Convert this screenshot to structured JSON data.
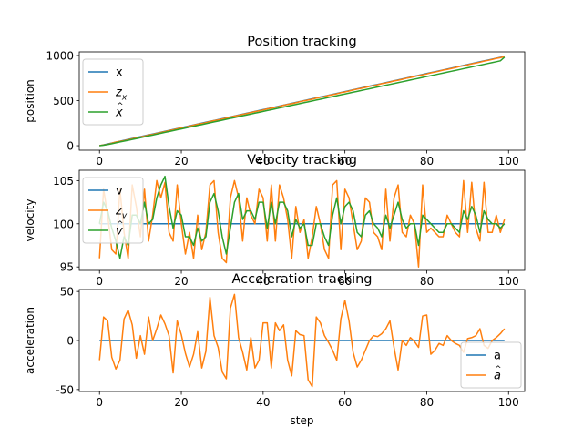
{
  "colors": {
    "C0": "#1f77b4",
    "C1": "#ff7f0e",
    "C2": "#2ca02c",
    "axis": "#000000",
    "legend_border": "#cccccc"
  },
  "chart_data": [
    {
      "type": "line",
      "title": "Position tracking",
      "ylabel": "position",
      "xlabel": "",
      "xlim": [
        -4.95,
        103.95
      ],
      "ylim": [
        -50,
        1040
      ],
      "xticks": [
        0,
        20,
        40,
        60,
        80,
        100
      ],
      "yticks": [
        0,
        500,
        1000
      ],
      "legend_placement": "upper-left",
      "series": [
        {
          "name": "x",
          "color": "C0",
          "x_start": 0,
          "x_step": 1,
          "values": [
            0,
            10,
            20,
            30,
            40,
            50,
            60,
            70,
            80,
            90,
            100,
            110,
            120,
            130,
            140,
            150,
            160,
            170,
            180,
            190,
            200,
            210,
            220,
            230,
            240,
            250,
            260,
            270,
            280,
            290,
            300,
            310,
            320,
            330,
            340,
            350,
            360,
            370,
            380,
            390,
            400,
            410,
            420,
            430,
            440,
            450,
            460,
            470,
            480,
            490,
            500,
            510,
            520,
            530,
            540,
            550,
            560,
            570,
            580,
            590,
            600,
            610,
            620,
            630,
            640,
            650,
            660,
            670,
            680,
            690,
            700,
            710,
            720,
            730,
            740,
            750,
            760,
            770,
            780,
            790,
            800,
            810,
            820,
            830,
            840,
            850,
            860,
            870,
            880,
            890,
            900,
            910,
            920,
            930,
            940,
            950,
            960,
            970,
            980,
            990
          ]
        },
        {
          "name": "z_x",
          "color": "C1",
          "x_start": 0,
          "x_step": 1,
          "values": [
            2,
            8,
            15,
            28,
            41,
            49,
            56,
            66,
            77,
            85,
            96,
            106,
            118,
            126,
            136,
            147,
            156,
            167,
            176,
            188,
            198,
            206,
            216,
            228,
            238,
            246,
            256,
            268,
            278,
            286,
            296,
            306,
            318,
            328,
            336,
            348,
            356,
            368,
            378,
            386,
            396,
            408,
            416,
            426,
            436,
            448,
            458,
            466,
            476,
            488,
            498,
            506,
            516,
            528,
            536,
            546,
            558,
            566,
            576,
            588,
            596,
            606,
            618,
            628,
            636,
            646,
            658,
            666,
            676,
            688,
            696,
            706,
            718,
            726,
            736,
            748,
            756,
            766,
            778,
            786,
            796,
            808,
            816,
            826,
            838,
            846,
            856,
            866,
            878,
            886,
            896,
            908,
            916,
            926,
            938,
            946,
            956,
            968,
            976,
            988
          ]
        },
        {
          "name": "x_hat",
          "color": "C2",
          "x_start": 0,
          "x_step": 1,
          "values": [
            0,
            6,
            13,
            22,
            32,
            42,
            51,
            60,
            70,
            79,
            89,
            99,
            109,
            118,
            128,
            138,
            148,
            157,
            167,
            177,
            186,
            196,
            206,
            215,
            225,
            234,
            244,
            254,
            264,
            273,
            283,
            293,
            303,
            312,
            322,
            332,
            341,
            351,
            361,
            370,
            380,
            390,
            399,
            409,
            419,
            428,
            438,
            448,
            457,
            467,
            477,
            486,
            496,
            506,
            515,
            525,
            535,
            544,
            554,
            564,
            573,
            583,
            593,
            602,
            612,
            622,
            631,
            641,
            651,
            660,
            670,
            680,
            689,
            699,
            709,
            718,
            728,
            738,
            747,
            757,
            767,
            776,
            786,
            796,
            805,
            815,
            825,
            834,
            844,
            854,
            863,
            873,
            883,
            892,
            902,
            912,
            921,
            931,
            941,
            981
          ]
        }
      ]
    },
    {
      "type": "line",
      "title": "Velocity tracking",
      "ylabel": "velocity",
      "xlabel": "",
      "xlim": [
        -4.95,
        103.95
      ],
      "ylim": [
        94.6,
        106.2
      ],
      "xticks": [
        0,
        20,
        40,
        60,
        80,
        100
      ],
      "yticks": [
        95,
        100,
        105
      ],
      "legend_placement": "upper-left",
      "series": [
        {
          "name": "v",
          "color": "C0",
          "x_start": 0,
          "x_step": 1,
          "values": [
            100,
            100,
            100,
            100,
            100,
            100,
            100,
            100,
            100,
            100,
            100,
            100,
            100,
            100,
            100,
            100,
            100,
            100,
            100,
            100,
            100,
            100,
            100,
            100,
            100,
            100,
            100,
            100,
            100,
            100,
            100,
            100,
            100,
            100,
            100,
            100,
            100,
            100,
            100,
            100,
            100,
            100,
            100,
            100,
            100,
            100,
            100,
            100,
            100,
            100,
            100,
            100,
            100,
            100,
            100,
            100,
            100,
            100,
            100,
            100,
            100,
            100,
            100,
            100,
            100,
            100,
            100,
            100,
            100,
            100,
            100,
            100,
            100,
            100,
            100,
            100,
            100,
            100,
            100,
            100,
            100,
            100,
            100,
            100,
            100,
            100,
            100,
            100,
            100,
            100,
            100,
            100,
            100,
            100,
            100,
            100,
            100,
            100,
            100,
            100
          ]
        },
        {
          "name": "z_v",
          "color": "C1",
          "x_start": 0,
          "x_step": 1,
          "values": [
            96,
            104,
            101,
            97,
            96.5,
            104,
            99,
            96,
            104.5,
            102,
            98.5,
            104,
            98,
            101,
            105,
            103,
            104.8,
            99,
            98,
            104.5,
            100,
            96.5,
            99,
            96,
            101,
            97,
            99,
            104.5,
            105,
            99,
            96,
            95.5,
            103,
            105,
            103,
            98,
            103,
            101,
            100,
            104,
            103,
            98,
            104.5,
            98,
            104.5,
            103,
            100.5,
            96,
            102,
            99,
            100.5,
            96,
            98.5,
            102,
            100,
            97,
            96,
            104.5,
            105,
            97,
            104,
            103,
            100,
            97,
            98,
            103,
            102.5,
            99,
            98.5,
            97,
            104,
            98,
            103,
            104.5,
            99,
            98.5,
            101,
            100,
            95,
            104.5,
            99,
            99.5,
            99,
            98.5,
            98.5,
            101,
            100,
            99,
            98.5,
            105,
            99,
            104.8,
            99.5,
            98,
            104.8,
            99,
            99,
            101,
            99,
            100.5
          ]
        },
        {
          "name": "v_hat",
          "color": "C2",
          "x_start": 0,
          "x_step": 1,
          "values": [
            100,
            102.5,
            101.5,
            99.5,
            98,
            96,
            98.5,
            97.5,
            101,
            101,
            100,
            102.5,
            100,
            100.5,
            103,
            104.5,
            105.5,
            102,
            99.5,
            101.5,
            101,
            98.5,
            98.5,
            97.5,
            99.5,
            98,
            98.5,
            102.5,
            103.5,
            101.5,
            98.5,
            96.5,
            99.5,
            102.5,
            103.5,
            100.5,
            101.5,
            101.5,
            100.5,
            102.5,
            102.5,
            99.5,
            102.5,
            100,
            102.5,
            102.5,
            101.5,
            98.5,
            100.5,
            99.5,
            100,
            97.5,
            97.5,
            100,
            100,
            98.5,
            97.5,
            101,
            103,
            100,
            102,
            102.5,
            101.5,
            99,
            98.5,
            101,
            101.5,
            100,
            99.5,
            98.5,
            101,
            99.5,
            101,
            102.5,
            100.5,
            99.5,
            100,
            100,
            97.5,
            101,
            100.5,
            100,
            99.5,
            99,
            99,
            100,
            100,
            99.5,
            99,
            101.5,
            100.5,
            102,
            101,
            99,
            101.5,
            100.5,
            100,
            100,
            99.5,
            100
          ]
        }
      ]
    },
    {
      "type": "line",
      "title": "Acceleration tracking",
      "ylabel": "acceleration",
      "xlabel": "step",
      "xlim": [
        -4.95,
        103.95
      ],
      "ylim": [
        -52,
        52
      ],
      "xticks": [
        0,
        20,
        40,
        60,
        80,
        100
      ],
      "yticks": [
        -50,
        0,
        50
      ],
      "legend_placement": "lower-right",
      "series": [
        {
          "name": "a",
          "color": "C0",
          "x_start": 0,
          "x_step": 1,
          "values": [
            0,
            0,
            0,
            0,
            0,
            0,
            0,
            0,
            0,
            0,
            0,
            0,
            0,
            0,
            0,
            0,
            0,
            0,
            0,
            0,
            0,
            0,
            0,
            0,
            0,
            0,
            0,
            0,
            0,
            0,
            0,
            0,
            0,
            0,
            0,
            0,
            0,
            0,
            0,
            0,
            0,
            0,
            0,
            0,
            0,
            0,
            0,
            0,
            0,
            0,
            0,
            0,
            0,
            0,
            0,
            0,
            0,
            0,
            0,
            0,
            0,
            0,
            0,
            0,
            0,
            0,
            0,
            0,
            0,
            0,
            0,
            0,
            0,
            0,
            0,
            0,
            0,
            0,
            0,
            0,
            0,
            0,
            0,
            0,
            0,
            0,
            0,
            0,
            0,
            0,
            0,
            0,
            0,
            0,
            0,
            0,
            0,
            0,
            0,
            0
          ]
        },
        {
          "name": "a_hat",
          "color": "C1",
          "x_start": 0,
          "x_step": 1,
          "values": [
            -20,
            24,
            20,
            -17,
            -29,
            -20,
            22,
            31,
            16,
            -18,
            5,
            -14,
            24,
            0,
            12,
            26,
            17,
            5,
            -33,
            20,
            6,
            -13,
            -27,
            -14,
            9,
            -28,
            -11,
            44,
            5,
            -7,
            -32,
            -39,
            33,
            47,
            3,
            -12,
            -30,
            3,
            -28,
            -20,
            18,
            18,
            -28,
            18,
            10,
            16,
            -20,
            -36,
            10,
            6,
            5,
            -40,
            -47,
            24,
            18,
            5,
            -2,
            -10,
            -20,
            22,
            41,
            20,
            -12,
            -27,
            -20,
            -10,
            0,
            5,
            4,
            7,
            12,
            20,
            -7,
            -30,
            0,
            -5,
            3,
            -1,
            -7,
            25,
            26,
            -14,
            -10,
            -3,
            -5,
            5,
            0,
            -3,
            -5,
            -12,
            2,
            3,
            5,
            12,
            -5,
            -8,
            0,
            3,
            7,
            12
          ]
        }
      ]
    }
  ],
  "legends": {
    "position": [
      {
        "color": "C0",
        "label_main": "x",
        "label_accent": "",
        "label_sub": ""
      },
      {
        "color": "C1",
        "label_main": "z",
        "label_accent": "",
        "label_sub": "x"
      },
      {
        "color": "C2",
        "label_main": "x",
        "label_accent": "^",
        "label_sub": ""
      }
    ],
    "velocity": [
      {
        "color": "C0",
        "label_main": "v",
        "label_accent": "",
        "label_sub": ""
      },
      {
        "color": "C1",
        "label_main": "z",
        "label_accent": "",
        "label_sub": "v"
      },
      {
        "color": "C2",
        "label_main": "v",
        "label_accent": "^",
        "label_sub": ""
      }
    ],
    "acceleration": [
      {
        "color": "C0",
        "label_main": "a",
        "label_accent": "",
        "label_sub": ""
      },
      {
        "color": "C1",
        "label_main": "a",
        "label_accent": "^",
        "label_sub": ""
      }
    ]
  }
}
